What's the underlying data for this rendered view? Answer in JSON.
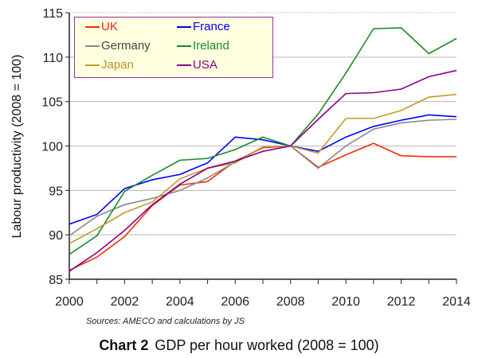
{
  "chart_data": {
    "type": "line",
    "title_prefix": "Chart 2",
    "title": "GDP per hour worked (2008 = 100)",
    "ylabel": "Labour productivity (2008 = 100)",
    "xlabel": "",
    "source": "Sources: AMECO and calculations by JS",
    "xlim": [
      2000,
      2014
    ],
    "ylim": [
      85,
      115
    ],
    "xticks": [
      2000,
      2002,
      2004,
      2006,
      2008,
      2010,
      2012,
      2014
    ],
    "yticks": [
      85,
      90,
      95,
      100,
      105,
      110,
      115
    ],
    "grid": true,
    "legend_placement": "top-left",
    "x": [
      2000,
      2001,
      2002,
      2003,
      2004,
      2005,
      2006,
      2007,
      2008,
      2009,
      2010,
      2011,
      2012,
      2013,
      2014
    ],
    "series": [
      {
        "name": "UK",
        "color": "#ff2a00",
        "text_color": "#e8281c",
        "values": [
          86.0,
          87.5,
          89.8,
          93.3,
          95.6,
          96.0,
          98.3,
          99.8,
          100,
          97.6,
          99.0,
          100.3,
          98.9,
          98.8,
          98.8
        ]
      },
      {
        "name": "France",
        "color": "#0000ff",
        "text_color": "#0000ff",
        "values": [
          91.2,
          92.3,
          95.2,
          96.2,
          96.8,
          98.1,
          101.0,
          100.7,
          100,
          99.4,
          101.0,
          102.2,
          102.9,
          103.5,
          103.3
        ]
      },
      {
        "name": "Germany",
        "color": "#888888",
        "text_color": "#444444",
        "values": [
          89.9,
          92.1,
          93.4,
          94.1,
          95.0,
          96.4,
          98.2,
          99.9,
          100,
          97.5,
          100.0,
          101.9,
          102.6,
          102.9,
          103.0
        ]
      },
      {
        "name": "Ireland",
        "color": "#1a8a2a",
        "text_color": "#1a8a2a",
        "values": [
          87.8,
          89.9,
          94.9,
          96.7,
          98.4,
          98.6,
          99.6,
          101.0,
          100,
          103.6,
          108.2,
          113.2,
          113.3,
          110.4,
          112.1
        ]
      },
      {
        "name": "Japan",
        "color": "#c49a2a",
        "text_color": "#b8962a",
        "values": [
          89.0,
          90.7,
          92.5,
          93.7,
          96.3,
          97.5,
          98.1,
          99.9,
          100,
          99.2,
          103.1,
          103.1,
          104.0,
          105.5,
          105.8
        ]
      },
      {
        "name": "USA",
        "color": "#880088",
        "text_color": "#880088",
        "values": [
          85.9,
          88.0,
          90.5,
          93.4,
          95.7,
          97.5,
          98.3,
          99.4,
          100,
          103.0,
          105.9,
          106.0,
          106.4,
          107.8,
          108.5
        ]
      }
    ]
  }
}
